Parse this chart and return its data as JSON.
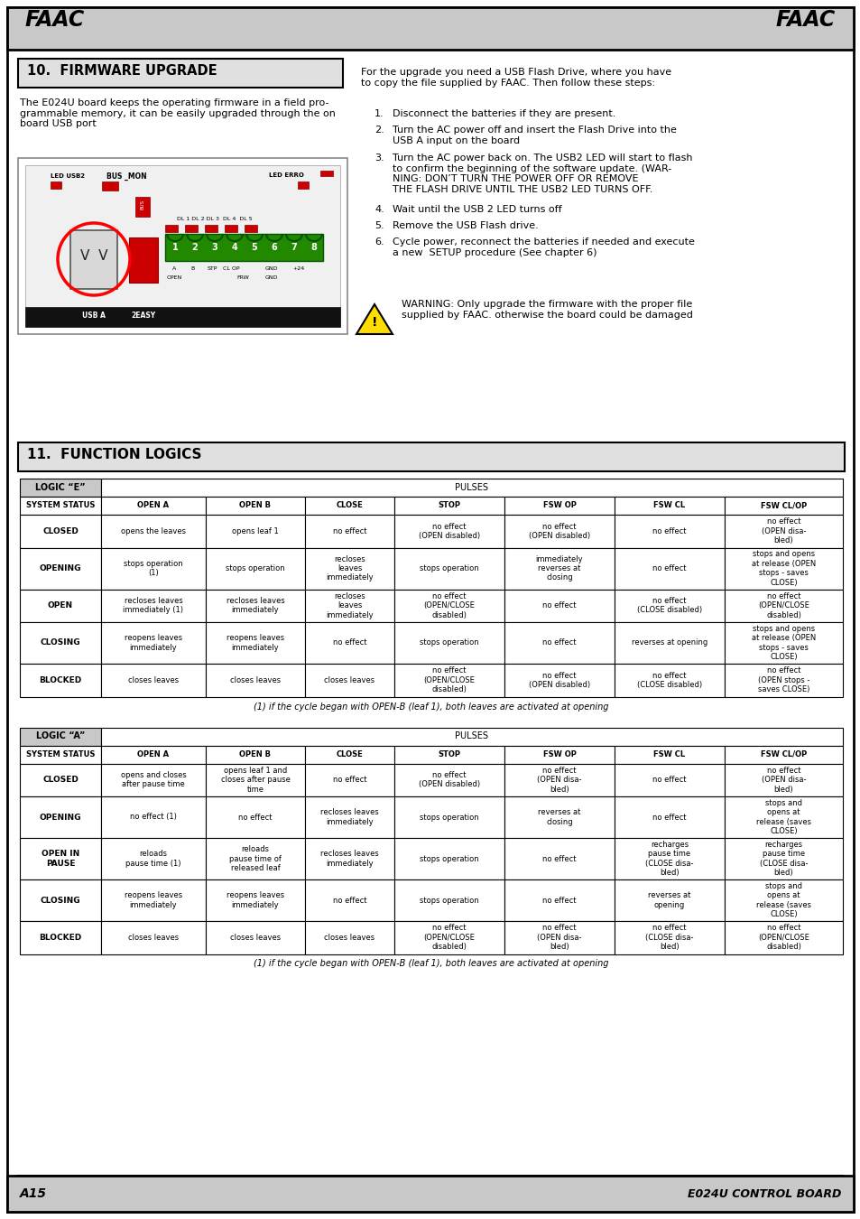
{
  "page_bg": "#ffffff",
  "header_bg": "#c8c8c8",
  "section_title_bg": "#e0e0e0",
  "table_header_bg": "#c8c8c8",
  "footer_left": "A15",
  "footer_right": "E024U CONTROL BOARD",
  "section10_title": "10.  FIRMWARE UPGRADE",
  "section11_title": "11.  FUNCTION LOGICS",
  "section10_left_text": "The E024U board keeps the operating firmware in a field pro-\ngrammable memory, it can be easily upgraded through the on\nboard USB port",
  "section10_right_intro": "For the upgrade you need a USB Flash Drive, where you have\nto copy the file supplied by FAAC. Then follow these steps:",
  "section10_steps": [
    "Disconnect the batteries if they are present.",
    "Turn the AC power off and insert the Flash Drive into the\nUSB A input on the board",
    "Turn the AC power back on. The USB2 LED will start to flash\nto confirm the beginning of the software update. (WAR-\nNING: DON’T TURN THE POWER OFF OR REMOVE\nTHE FLASH DRIVE UNTIL THE USB2 LED TURNS OFF.",
    "Wait until the USB 2 LED turns off",
    "Remove the USB Flash drive.",
    "Cycle power, reconnect the batteries if needed and execute\na new  SETUP procedure (See chapter 6)"
  ],
  "warning_text": "WARNING: Only upgrade the firmware with the proper file\nsupplied by FAAC. otherwise the board could be damaged",
  "col_headers": [
    "SYSTEM STATUS",
    "OPEN A",
    "OPEN B",
    "CLOSE",
    "STOP",
    "FSW OP",
    "FSW CL",
    "FSW CL/OP"
  ],
  "table_e_title": "LOGIC “E”",
  "table_a_title": "LOGIC “A”",
  "table_e_rows": [
    [
      "CLOSED",
      "opens the leaves",
      "opens leaf 1",
      "no effect",
      "no effect\n(OPEN disabled)",
      "no effect\n(OPEN disabled)",
      "no effect",
      "no effect\n(OPEN disa-\nbled)"
    ],
    [
      "OPENING",
      "stops operation\n(1)",
      "stops operation",
      "recloses\nleaves\nimmediately",
      "stops operation",
      "immediately\nreverses at\nclosing",
      "no effect",
      "stops and opens\nat release (OPEN\nstops - saves\nCLOSE)"
    ],
    [
      "OPEN",
      "recloses leaves\nimmediately (1)",
      "recloses leaves\nimmediately",
      "recloses\nleaves\nimmediately",
      "no effect\n(OPEN/CLOSE\ndisabled)",
      "no effect",
      "no effect\n(CLOSE disabled)",
      "no effect\n(OPEN/CLOSE\ndisabled)"
    ],
    [
      "CLOSING",
      "reopens leaves\nimmediately",
      "reopens leaves\nimmediately",
      "no effect",
      "stops operation",
      "no effect",
      "reverses at opening",
      "stops and opens\nat release (OPEN\nstops - saves\nCLOSE)"
    ],
    [
      "BLOCKED",
      "closes leaves",
      "closes leaves",
      "closes leaves",
      "no effect\n(OPEN/CLOSE\ndisabled)",
      "no effect\n(OPEN disabled)",
      "no effect\n(CLOSE disabled)",
      "no effect\n(OPEN stops -\nsaves CLOSE)"
    ]
  ],
  "table_e_footnote": "(1) if the cycle began with OPEN-B (leaf 1), both leaves are activated at opening",
  "table_a_rows": [
    [
      "CLOSED",
      "opens and closes\nafter pause time",
      "opens leaf 1 and\ncloses after pause\ntime",
      "no effect",
      "no effect\n(OPEN disabled)",
      "no effect\n(OPEN disa-\nbled)",
      "no effect",
      "no effect\n(OPEN disa-\nbled)"
    ],
    [
      "OPENING",
      "no effect (1)",
      "no effect",
      "recloses leaves\nimmediately",
      "stops operation",
      "reverses at\nclosing",
      "no effect",
      "stops and\nopens at\nrelease (saves\nCLOSE)"
    ],
    [
      "OPEN IN\nPAUSE",
      "reloads\npause time (1)",
      "reloads\npause time of\nreleased leaf",
      "recloses leaves\nimmediately",
      "stops operation",
      "no effect",
      "recharges\npause time\n(CLOSE disa-\nbled)",
      "recharges\npause time\n(CLOSE disa-\nbled)"
    ],
    [
      "CLOSING",
      "reopens leaves\nimmediately",
      "reopens leaves\nimmediately",
      "no effect",
      "stops operation",
      "no effect",
      "reverses at\nopening",
      "stops and\nopens at\nrelease (saves\nCLOSE)"
    ],
    [
      "BLOCKED",
      "closes leaves",
      "closes leaves",
      "closes leaves",
      "no effect\n(OPEN/CLOSE\ndisabled)",
      "no effect\n(OPEN disa-\nbled)",
      "no effect\n(CLOSE disa-\nbled)",
      "no effect\n(OPEN/CLOSE\ndisabled)"
    ]
  ],
  "table_a_footnote": "(1) if the cycle began with OPEN-B (leaf 1), both leaves are activated at opening"
}
